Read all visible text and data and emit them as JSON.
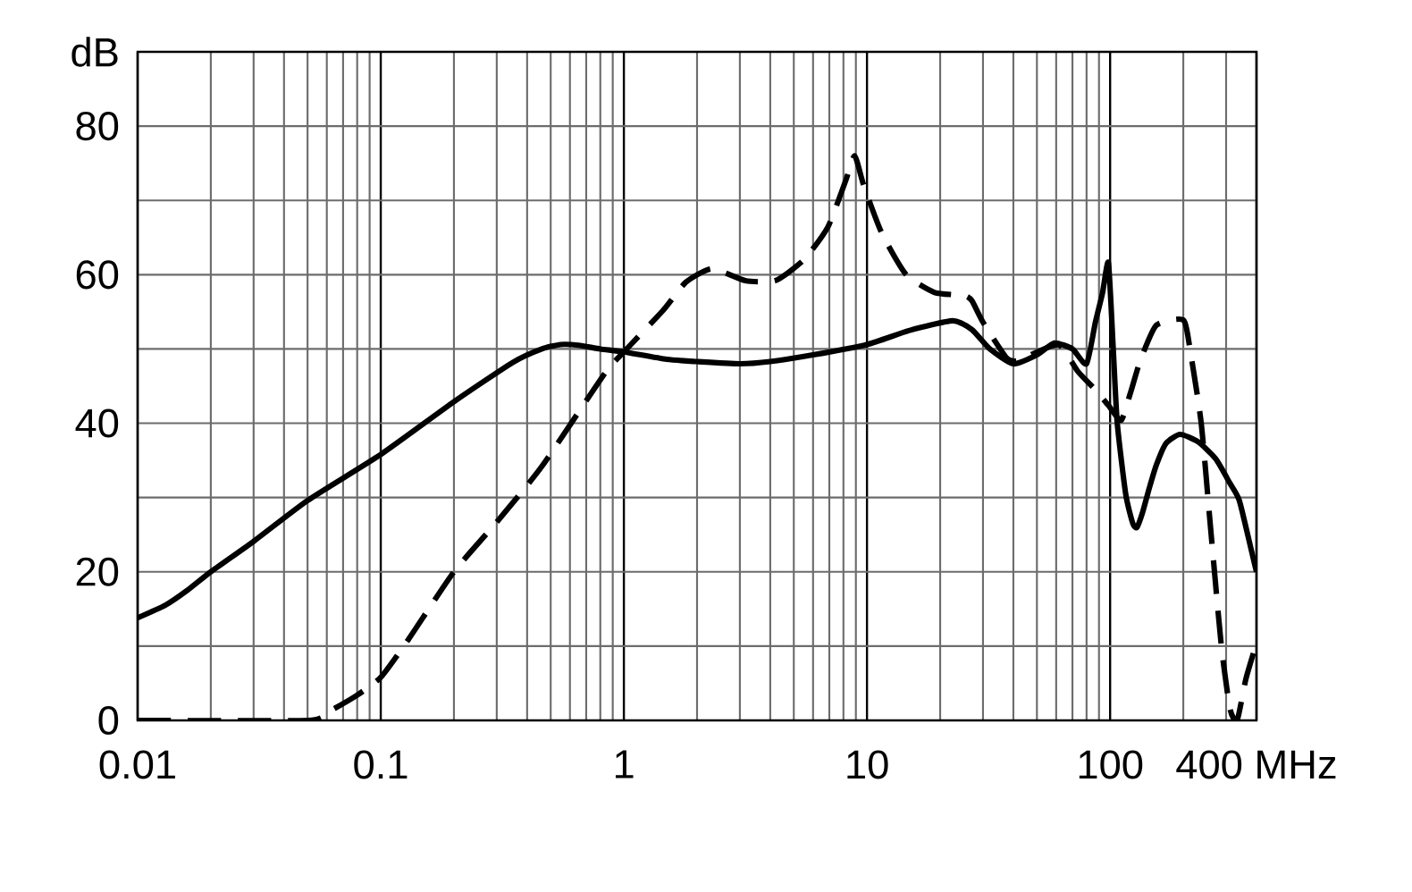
{
  "chart_data": {
    "type": "line",
    "ylabel": "dB",
    "log": "x",
    "xlim": [
      0.01,
      400
    ],
    "ylim": [
      0,
      90
    ],
    "xticks": [
      0.01,
      0.1,
      1,
      10,
      100,
      {
        "value": 400,
        "label": "400 MHz"
      }
    ],
    "yticks": [
      0,
      20,
      40,
      60,
      80
    ],
    "grid": true,
    "series": [
      {
        "color": "#000000",
        "line_style": "solid",
        "x": [
          0.01,
          0.013,
          0.016,
          0.02,
          0.03,
          0.05,
          0.1,
          0.2,
          0.35,
          0.46,
          0.55,
          0.65,
          0.8,
          1,
          1.5,
          2,
          3,
          4,
          6,
          10,
          15,
          22.5,
          27,
          32,
          40,
          50,
          59,
          70,
          80,
          87,
          93,
          98.4,
          103,
          107,
          116,
          124,
          129,
          136,
          145,
          155,
          170,
          194,
          230,
          272,
          310,
          340,
          381,
          400
        ],
        "values": [
          13.8,
          15.5,
          17.5,
          20,
          24.1,
          29.6,
          35.8,
          42.9,
          48.2,
          50,
          50.6,
          50.5,
          50,
          49.6,
          48.6,
          48.3,
          48,
          48.3,
          49.2,
          50.6,
          52.5,
          53.8,
          52.6,
          50,
          48,
          49.2,
          50.8,
          50,
          48,
          53.6,
          57.5,
          61.6,
          50,
          40,
          30.4,
          26.5,
          26,
          28,
          31.3,
          34.4,
          37.3,
          38.5,
          37.5,
          35.2,
          32,
          29.6,
          22.9,
          20
        ]
      },
      {
        "color": "#000000",
        "line_style": "dashed",
        "x": [
          0.01,
          0.05,
          0.062,
          0.08,
          0.1,
          0.13,
          0.2,
          0.3,
          0.46,
          0.83,
          1,
          1.45,
          1.8,
          2.3,
          3.16,
          4.2,
          5.5,
          6.9,
          8.2,
          8.9,
          9.7,
          11.5,
          14.5,
          19,
          25,
          27,
          30,
          37.5,
          42,
          50,
          62,
          74,
          87,
          98.4,
          111,
          121,
          133,
          155,
          200,
          214,
          237,
          258,
          286,
          311,
          333,
          362,
          400
        ],
        "values": [
          0,
          0,
          1.3,
          3.4,
          5.8,
          10.9,
          20,
          26.7,
          34.2,
          46.6,
          49.6,
          55.2,
          59,
          60.8,
          59.2,
          59.2,
          62,
          66.4,
          72.8,
          76,
          72,
          65.6,
          60,
          57.6,
          57.2,
          56.5,
          53.6,
          48.8,
          48.4,
          49.6,
          50.5,
          46.9,
          44.5,
          42.4,
          40.4,
          44,
          48.4,
          53.2,
          53.9,
          49.6,
          40,
          26.5,
          10.4,
          1.6,
          0,
          5.6,
          10.4
        ]
      }
    ]
  }
}
